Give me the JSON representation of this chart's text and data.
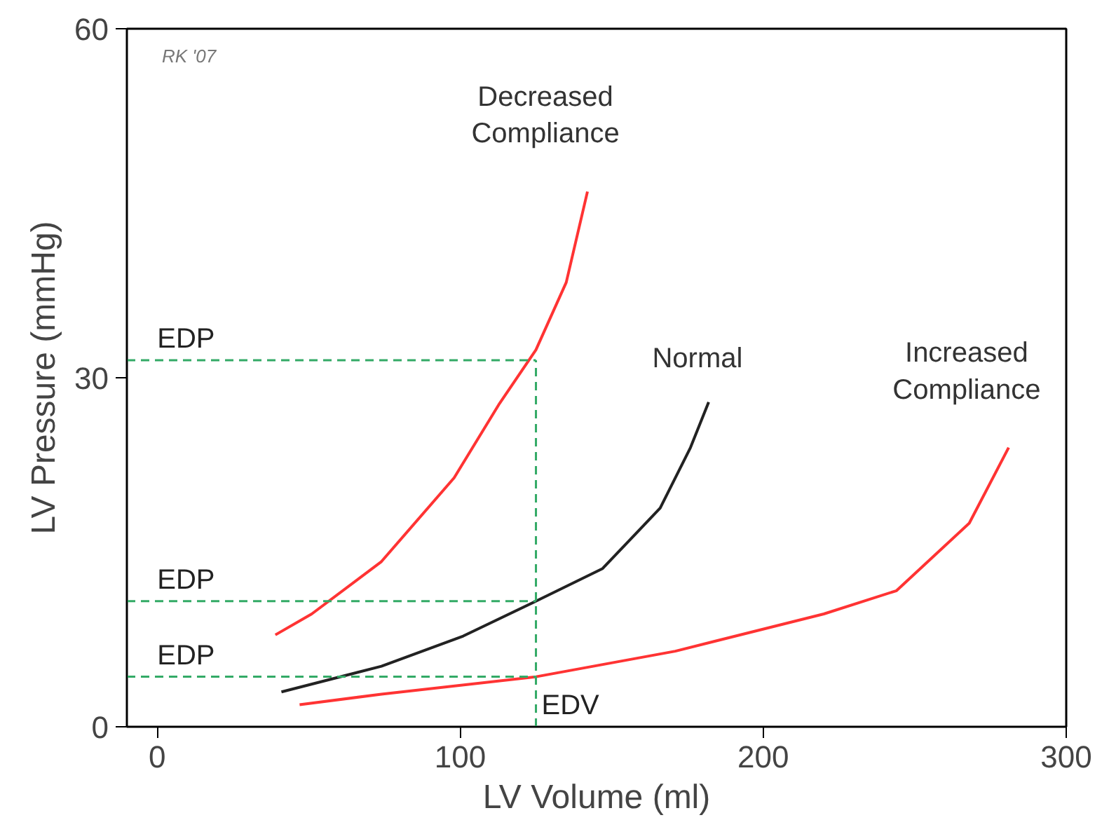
{
  "chart_data": {
    "type": "line",
    "xlabel": "LV Volume (ml)",
    "ylabel": "LV Pressure (mmHg)",
    "xlim": [
      -10,
      300
    ],
    "ylim": [
      0,
      60
    ],
    "xticks": [
      0,
      100,
      200,
      300
    ],
    "yticks": [
      0,
      30,
      60
    ],
    "grid": false,
    "marker": "none",
    "line_style": "solid",
    "series": [
      {
        "name": "Decreased Compliance",
        "color": "#ff3333",
        "x": [
          39,
          51,
          74,
          98,
          113,
          125,
          135,
          142
        ],
        "values": [
          7.9,
          9.7,
          14.2,
          21.4,
          27.8,
          32.4,
          38.2,
          46
        ]
      },
      {
        "name": "Normal",
        "color": "#222222",
        "x": [
          41,
          74,
          101,
          125,
          147,
          166,
          176,
          182
        ],
        "values": [
          3,
          5.2,
          7.8,
          10.8,
          13.6,
          18.8,
          24,
          27.9
        ]
      },
      {
        "name": "Increased Compliance",
        "color": "#ff3333",
        "x": [
          47,
          74,
          125,
          171,
          220,
          244,
          268,
          281
        ],
        "values": [
          1.9,
          2.8,
          4.3,
          6.5,
          9.7,
          11.7,
          17.5,
          24
        ]
      }
    ],
    "ref_lines": [
      {
        "axis": "y",
        "value": 31.5,
        "label": "EDP",
        "color": "#33aa66",
        "line_style": "dashed"
      },
      {
        "axis": "y",
        "value": 10.8,
        "label": "EDP",
        "color": "#33aa66",
        "line_style": "dashed"
      },
      {
        "axis": "y",
        "value": 4.3,
        "label": "EDP",
        "color": "#33aa66",
        "line_style": "dashed"
      },
      {
        "axis": "x",
        "value": 125,
        "label": "EDV",
        "color": "#33aa66",
        "line_style": "dashed"
      }
    ],
    "annotations": [
      "RK '07"
    ]
  }
}
